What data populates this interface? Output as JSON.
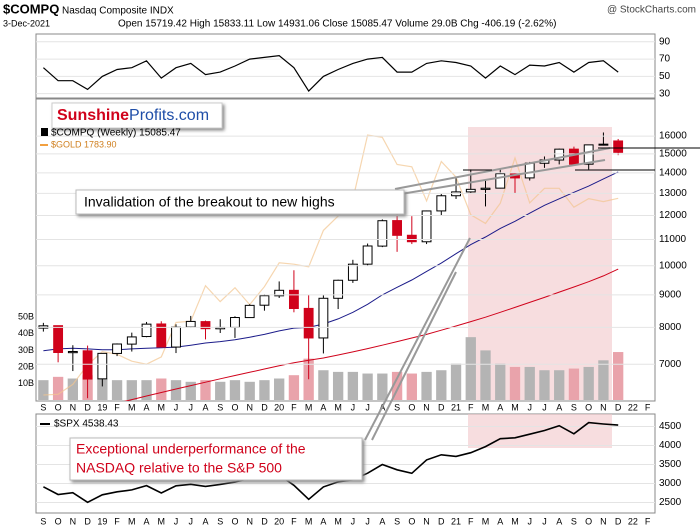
{
  "header": {
    "symbol": "$COMPQ",
    "name": "Nasdaq Composite INDX",
    "credit": "@ StockCharts.com",
    "date": "3-Dec-2021",
    "quote": "Open 15719.42 High 15833.11 Low 14931.06 Close 15085.47 Volume 29.0B Chg -406.19 (-2.62%)"
  },
  "logo": {
    "first": "Sunshine",
    "second": "Profits.com"
  },
  "chart_data": [
    {
      "type": "line",
      "color": "#000000",
      "categories": [
        "S",
        "O",
        "N",
        "D",
        "19",
        "F",
        "M",
        "A",
        "M",
        "J",
        "J",
        "A",
        "S",
        "O",
        "N",
        "D",
        "20",
        "F",
        "M",
        "A",
        "M",
        "J",
        "J",
        "A",
        "S",
        "O",
        "N",
        "D",
        "21",
        "F",
        "M",
        "A",
        "M",
        "J",
        "J",
        "A",
        "S",
        "O",
        "N",
        "D",
        "22",
        "F"
      ],
      "values": [
        60,
        45,
        45,
        35,
        50,
        58,
        60,
        68,
        48,
        60,
        65,
        52,
        55,
        62,
        70,
        72,
        74,
        60,
        33,
        50,
        58,
        65,
        70,
        72,
        55,
        55,
        65,
        68,
        66,
        62,
        48,
        62,
        52,
        63,
        62,
        66,
        55,
        66,
        68,
        55,
        null,
        null
      ],
      "ylim": [
        25,
        99
      ],
      "yticks": [
        30,
        50,
        70,
        90
      ]
    },
    {
      "type": "candlestick",
      "name": "$COMPQ (Weekly) 15085.47",
      "log_scale": true,
      "categories": [
        "S",
        "O",
        "N",
        "D",
        "19",
        "F",
        "M",
        "A",
        "M",
        "J",
        "J",
        "A",
        "S",
        "O",
        "N",
        "D",
        "20",
        "F",
        "M",
        "A",
        "M",
        "J",
        "J",
        "A",
        "S",
        "O",
        "N",
        "D",
        "21",
        "F",
        "M",
        "A",
        "M",
        "J",
        "J",
        "A",
        "S",
        "O",
        "N",
        "D",
        "22",
        "F"
      ],
      "open": [
        7980,
        8050,
        7300,
        7350,
        6640,
        7280,
        7530,
        7740,
        8100,
        7450,
        8010,
        8170,
        7960,
        8000,
        8290,
        8670,
        8970,
        9150,
        8570,
        7700,
        8890,
        9490,
        10060,
        10740,
        11780,
        11170,
        10910,
        12200,
        12890,
        13070,
        13190,
        13250,
        13960,
        13750,
        14500,
        14670,
        15260,
        14450,
        15500,
        15719.42,
        null,
        null
      ],
      "high": [
        8133,
        8050,
        7500,
        7490,
        7290,
        7550,
        7850,
        8160,
        8180,
        8090,
        8340,
        8200,
        8240,
        8330,
        8700,
        9020,
        9450,
        9840,
        9000,
        8990,
        9510,
        10220,
        10840,
        11830,
        12070,
        11970,
        12220,
        12970,
        13730,
        14180,
        13620,
        14210,
        14020,
        14570,
        14860,
        15290,
        15400,
        15500,
        16210,
        15833.11,
        null,
        null
      ],
      "low": [
        7880,
        7050,
        6830,
        6190,
        6460,
        7210,
        7330,
        7720,
        7450,
        7290,
        7990,
        7660,
        7840,
        7700,
        8280,
        8500,
        8900,
        8450,
        6630,
        7280,
        8550,
        9400,
        10000,
        10700,
        10520,
        10820,
        10820,
        12020,
        12740,
        13000,
        12400,
        13230,
        13000,
        13620,
        14260,
        14440,
        14430,
        14180,
        15460,
        14931.06,
        null,
        null
      ],
      "close": [
        8046,
        7305,
        7331,
        6635,
        7282,
        7533,
        7729,
        8095,
        7453,
        8006,
        8175,
        7963,
        7999,
        8292,
        8665,
        8973,
        9151,
        8567,
        7700,
        8890,
        9490,
        10059,
        10745,
        11775,
        11168,
        10912,
        12199,
        12888,
        13071,
        13192,
        13247,
        13962,
        13749,
        14504,
        14673,
        15259,
        14449,
        15498,
        15538,
        15085.47,
        null,
        null
      ],
      "up_color": "#000000",
      "down_color": "#d0021b",
      "ylim": [
        6150,
        18300
      ],
      "yticks": [
        7000,
        8000,
        9000,
        10000,
        11000,
        12000,
        13000,
        14000,
        15000,
        16000
      ],
      "overlays": [
        {
          "name": "$GOLD 1783.90",
          "color": "#f2c48f",
          "values": [
            1190,
            1192,
            1222,
            1281,
            1321,
            1313,
            1292,
            1283,
            1305,
            1409,
            1413,
            1520,
            1472,
            1514,
            1463,
            1517,
            1589,
            1585,
            1577,
            1687,
            1730,
            1781,
            1975,
            1968,
            1886,
            1879,
            1776,
            1895,
            1848,
            1734,
            1708,
            1769,
            1906,
            1770,
            1814,
            1814,
            1757,
            1783,
            1774,
            1783.9,
            null,
            null
          ]
        }
      ],
      "moving_averages": [
        {
          "color": "#1c1c8a",
          "values": [
            7350,
            7400,
            7420,
            7400,
            7380,
            7380,
            7400,
            7420,
            7430,
            7450,
            7500,
            7560,
            7600,
            7650,
            7720,
            7800,
            7900,
            7980,
            8000,
            8100,
            8250,
            8450,
            8700,
            9000,
            9250,
            9500,
            9800,
            10100,
            10450,
            10800,
            11100,
            11450,
            11750,
            12100,
            12450,
            12750,
            13050,
            13350,
            13700,
            14050,
            null,
            null
          ]
        },
        {
          "color": "#d0021b",
          "values": [
            5700,
            5780,
            5850,
            5920,
            6000,
            6080,
            6160,
            6240,
            6320,
            6400,
            6480,
            6560,
            6640,
            6720,
            6800,
            6880,
            6960,
            7040,
            7100,
            7160,
            7240,
            7320,
            7410,
            7500,
            7600,
            7700,
            7800,
            7920,
            8040,
            8170,
            8300,
            8450,
            8600,
            8760,
            8920,
            9090,
            9260,
            9440,
            9640,
            9880,
            null,
            null
          ]
        }
      ],
      "volume": {
        "values": [
          12,
          14,
          13,
          15,
          13,
          12,
          12,
          12,
          13,
          12,
          11,
          12,
          11,
          12,
          11,
          12,
          13,
          15,
          25,
          18,
          17,
          17,
          16,
          16,
          17,
          16,
          17,
          18,
          22,
          38,
          30,
          22,
          20,
          20,
          18,
          18,
          19,
          20,
          24,
          29,
          null,
          null
        ],
        "up_color": "#b4b4b4",
        "down_color": "#e9a3ab",
        "y2lim": [
          0,
          182
        ],
        "y2ticks": [
          {
            "value": 10,
            "label": "10B"
          },
          {
            "value": 20,
            "label": "20B"
          },
          {
            "value": 30,
            "label": "30B"
          },
          {
            "value": 40,
            "label": "40B"
          },
          {
            "value": 50,
            "label": "50B"
          }
        ]
      },
      "annotations": [
        "Invalidation of the breakout to new highs"
      ]
    },
    {
      "type": "line",
      "name": "$SPX 4538.43",
      "color": "#000000",
      "categories": [
        "S",
        "O",
        "N",
        "D",
        "19",
        "F",
        "M",
        "A",
        "M",
        "J",
        "J",
        "A",
        "S",
        "O",
        "N",
        "D",
        "20",
        "F",
        "M",
        "A",
        "M",
        "J",
        "J",
        "A",
        "S",
        "O",
        "N",
        "D",
        "21",
        "F",
        "M",
        "A",
        "M",
        "J",
        "J",
        "A",
        "S",
        "O",
        "N",
        "D",
        "22",
        "F"
      ],
      "values": [
        2914,
        2711,
        2760,
        2507,
        2704,
        2784,
        2834,
        2946,
        2752,
        2942,
        2980,
        2926,
        2977,
        3038,
        3141,
        3231,
        3226,
        2954,
        2585,
        2912,
        3044,
        3100,
        3271,
        3500,
        3363,
        3270,
        3622,
        3756,
        3714,
        3811,
        3973,
        4181,
        4204,
        4298,
        4395,
        4523,
        4308,
        4605,
        4567,
        4538.43,
        null,
        null
      ],
      "ylim": [
        2225,
        4830
      ],
      "yticks": [
        2500,
        3000,
        3500,
        4000,
        4500
      ],
      "annotations": [
        "Exceptional underperformance of the",
        "NASDAQ relative to the S&P 500"
      ]
    }
  ]
}
